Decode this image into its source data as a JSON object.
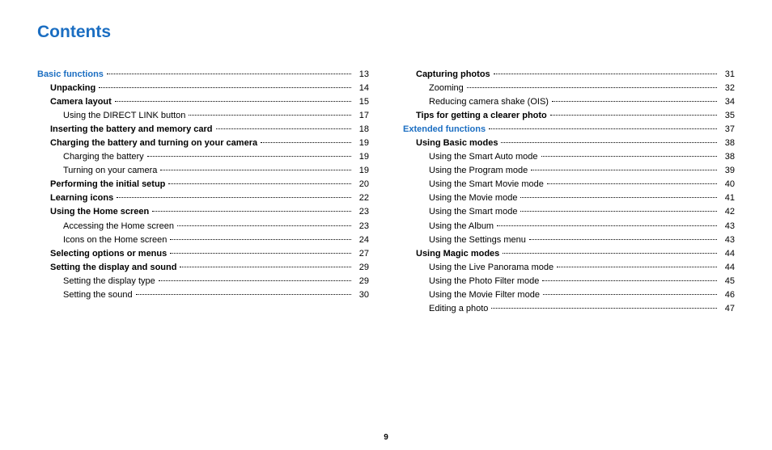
{
  "title": "Contents",
  "title_color": "#1b6ec2",
  "accent_color": "#1b6ec2",
  "page_number": "9",
  "columns": [
    {
      "entries": [
        {
          "level": 1,
          "label": "Basic functions",
          "page": "13",
          "accent": true
        },
        {
          "level": 2,
          "label": "Unpacking",
          "page": "14"
        },
        {
          "level": 2,
          "label": "Camera layout",
          "page": "15"
        },
        {
          "level": 3,
          "label": "Using the DIRECT LINK button",
          "page": "17"
        },
        {
          "level": 2,
          "label": "Inserting the battery and memory card",
          "page": "18"
        },
        {
          "level": 2,
          "label": "Charging the battery and turning on your camera",
          "page": "19"
        },
        {
          "level": 3,
          "label": "Charging the battery",
          "page": "19"
        },
        {
          "level": 3,
          "label": "Turning on your camera",
          "page": "19"
        },
        {
          "level": 2,
          "label": "Performing the initial setup",
          "page": "20"
        },
        {
          "level": 2,
          "label": "Learning icons",
          "page": "22"
        },
        {
          "level": 2,
          "label": "Using the Home screen",
          "page": "23"
        },
        {
          "level": 3,
          "label": "Accessing the Home screen",
          "page": "23"
        },
        {
          "level": 3,
          "label": "Icons on the Home screen",
          "page": "24"
        },
        {
          "level": 2,
          "label": "Selecting options or menus",
          "page": "27"
        },
        {
          "level": 2,
          "label": "Setting the display and sound",
          "page": "29"
        },
        {
          "level": 3,
          "label": "Setting the display type",
          "page": "29"
        },
        {
          "level": 3,
          "label": "Setting the sound",
          "page": "30"
        }
      ]
    },
    {
      "entries": [
        {
          "level": 2,
          "label": "Capturing photos",
          "page": "31"
        },
        {
          "level": 3,
          "label": "Zooming",
          "page": "32"
        },
        {
          "level": 3,
          "label": "Reducing camera shake (OIS)",
          "page": "34"
        },
        {
          "level": 2,
          "label": "Tips for getting a clearer photo",
          "page": "35"
        },
        {
          "level": 1,
          "label": "Extended functions",
          "page": "37",
          "accent": true
        },
        {
          "level": 2,
          "label": "Using Basic modes",
          "page": "38"
        },
        {
          "level": 3,
          "label": "Using the Smart Auto mode",
          "page": "38"
        },
        {
          "level": 3,
          "label": "Using the Program mode",
          "page": "39"
        },
        {
          "level": 3,
          "label": "Using the Smart Movie mode",
          "page": "40"
        },
        {
          "level": 3,
          "label": "Using the Movie mode",
          "page": "41"
        },
        {
          "level": 3,
          "label": "Using the Smart mode",
          "page": "42"
        },
        {
          "level": 3,
          "label": "Using the Album",
          "page": "43"
        },
        {
          "level": 3,
          "label": "Using the Settings menu",
          "page": "43"
        },
        {
          "level": 2,
          "label": "Using Magic modes",
          "page": "44"
        },
        {
          "level": 3,
          "label": "Using the Live Panorama mode",
          "page": "44"
        },
        {
          "level": 3,
          "label": "Using the Photo Filter mode",
          "page": "45"
        },
        {
          "level": 3,
          "label": "Using the Movie Filter mode",
          "page": "46"
        },
        {
          "level": 3,
          "label": "Editing a photo",
          "page": "47"
        }
      ]
    }
  ]
}
